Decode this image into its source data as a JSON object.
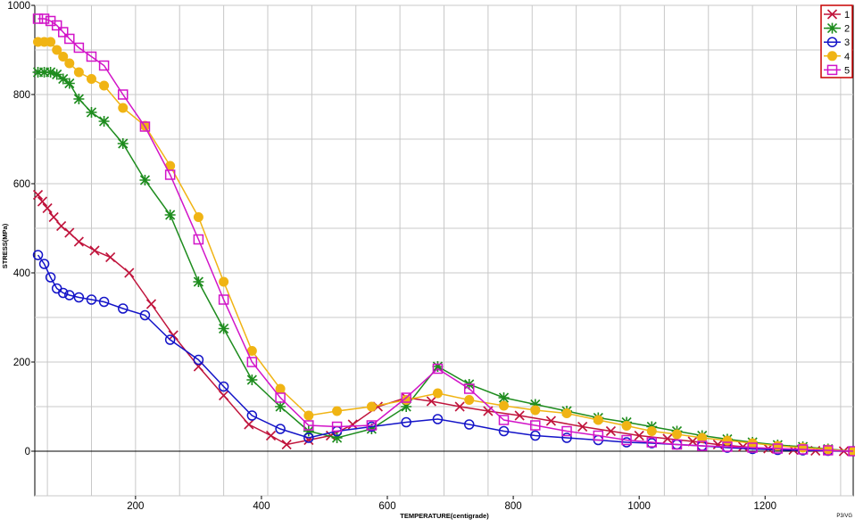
{
  "chart_data": {
    "type": "line",
    "title": "",
    "xlabel": "TEMPERATURE(centigrade)",
    "ylabel": "STRESS(MPa)",
    "footer": "P3/VG",
    "xlim": [
      40,
      1340
    ],
    "ylim": [
      -100,
      1000
    ],
    "xticks": [
      200,
      400,
      600,
      800,
      1000,
      1200
    ],
    "yticks": [
      0,
      200,
      400,
      600,
      800,
      1000
    ],
    "grid": true,
    "legend_position": "top-right",
    "series": [
      {
        "name": "1",
        "color": "#c0143c",
        "marker": "x",
        "x": [
          45,
          52,
          60,
          70,
          82,
          95,
          110,
          135,
          160,
          190,
          225,
          260,
          300,
          340,
          380,
          415,
          440,
          475,
          510,
          545,
          585,
          630,
          670,
          715,
          760,
          810,
          860,
          910,
          955,
          1000,
          1045,
          1085,
          1125,
          1165,
          1205,
          1245,
          1280,
          1325,
          1340
        ],
        "y": [
          575,
          560,
          545,
          525,
          505,
          490,
          470,
          450,
          435,
          400,
          330,
          260,
          190,
          125,
          60,
          35,
          15,
          25,
          35,
          60,
          100,
          120,
          112,
          100,
          90,
          80,
          68,
          55,
          45,
          35,
          28,
          22,
          15,
          10,
          6,
          3,
          1,
          0,
          0
        ]
      },
      {
        "name": "2",
        "color": "#1e8c1e",
        "marker": "asterisk",
        "x": [
          45,
          55,
          65,
          75,
          85,
          95,
          110,
          130,
          150,
          180,
          215,
          255,
          300,
          340,
          385,
          430,
          475,
          520,
          575,
          630,
          680,
          730,
          785,
          835,
          885,
          935,
          980,
          1020,
          1060,
          1100,
          1140,
          1180,
          1220,
          1260,
          1300,
          1340
        ],
        "y": [
          850,
          850,
          850,
          845,
          835,
          825,
          790,
          760,
          740,
          690,
          608,
          530,
          380,
          275,
          160,
          100,
          45,
          30,
          50,
          100,
          190,
          150,
          120,
          105,
          90,
          75,
          65,
          55,
          45,
          35,
          27,
          20,
          14,
          10,
          5,
          0
        ]
      },
      {
        "name": "3",
        "color": "#1414c8",
        "marker": "circle",
        "x": [
          45,
          55,
          65,
          75,
          85,
          95,
          110,
          130,
          150,
          180,
          215,
          255,
          300,
          340,
          385,
          430,
          475,
          520,
          575,
          630,
          680,
          730,
          785,
          835,
          885,
          935,
          980,
          1020,
          1060,
          1100,
          1140,
          1180,
          1220,
          1260,
          1300,
          1340
        ],
        "y": [
          440,
          420,
          390,
          365,
          355,
          350,
          345,
          340,
          335,
          320,
          305,
          250,
          205,
          145,
          80,
          50,
          30,
          45,
          55,
          65,
          72,
          60,
          45,
          35,
          30,
          25,
          20,
          18,
          15,
          12,
          8,
          5,
          3,
          2,
          1,
          0
        ]
      },
      {
        "name": "4",
        "color": "#f0b414",
        "marker": "filled-circle",
        "x": [
          45,
          55,
          65,
          75,
          85,
          95,
          110,
          130,
          150,
          180,
          215,
          255,
          300,
          340,
          385,
          430,
          475,
          520,
          575,
          630,
          680,
          730,
          785,
          835,
          885,
          935,
          980,
          1020,
          1060,
          1100,
          1140,
          1180,
          1220,
          1260,
          1300,
          1340
        ],
        "y": [
          918,
          918,
          918,
          900,
          885,
          870,
          850,
          835,
          820,
          770,
          730,
          640,
          525,
          380,
          225,
          140,
          80,
          90,
          100,
          115,
          130,
          115,
          102,
          92,
          85,
          70,
          57,
          45,
          38,
          30,
          24,
          18,
          12,
          8,
          4,
          0
        ]
      },
      {
        "name": "5",
        "color": "#d214c8",
        "marker": "square",
        "x": [
          45,
          55,
          65,
          75,
          85,
          95,
          110,
          130,
          150,
          180,
          215,
          255,
          300,
          340,
          385,
          430,
          475,
          520,
          575,
          630,
          680,
          730,
          785,
          835,
          885,
          935,
          980,
          1020,
          1060,
          1100,
          1140,
          1180,
          1220,
          1260,
          1300,
          1340
        ],
        "y": [
          970,
          970,
          965,
          955,
          940,
          925,
          905,
          885,
          865,
          800,
          728,
          620,
          475,
          340,
          200,
          120,
          58,
          55,
          58,
          120,
          185,
          140,
          70,
          58,
          45,
          35,
          25,
          20,
          15,
          12,
          10,
          8,
          6,
          4,
          2,
          0
        ]
      }
    ]
  }
}
